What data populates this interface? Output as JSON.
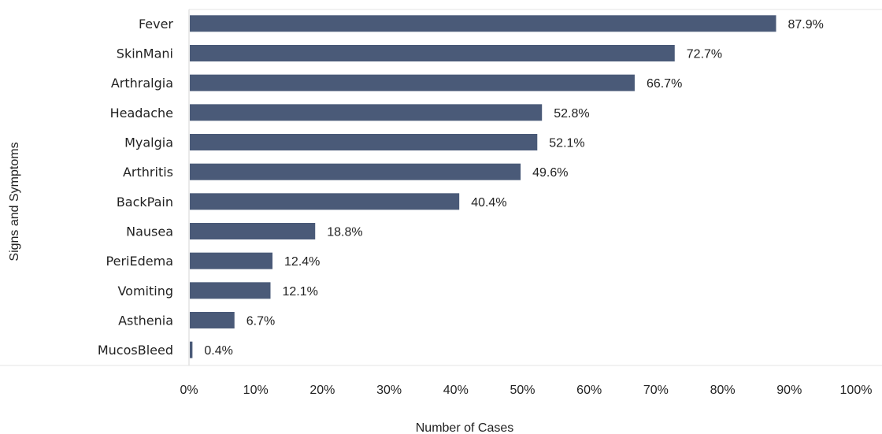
{
  "chart_data": {
    "type": "bar",
    "orientation": "horizontal",
    "title": "",
    "xlabel": "Number of Cases",
    "ylabel": "Signs and Symptoms",
    "xlim": [
      0,
      100
    ],
    "x_ticks": [
      "0%",
      "10%",
      "20%",
      "30%",
      "40%",
      "50%",
      "60%",
      "70%",
      "80%",
      "90%",
      "100%"
    ],
    "categories": [
      "Fever",
      "SkinMani",
      "Arthralgia",
      "Headache",
      "Myalgia",
      "Arthritis",
      "BackPain",
      "Nausea",
      "PeriEdema",
      "Vomiting",
      "Asthenia",
      "MucosBleed"
    ],
    "values": [
      87.9,
      72.7,
      66.7,
      52.8,
      52.1,
      49.6,
      40.4,
      18.8,
      12.4,
      12.1,
      6.7,
      0.4
    ],
    "value_labels": [
      "87.9%",
      "72.7%",
      "66.7%",
      "52.8%",
      "52.1%",
      "49.6%",
      "40.4%",
      "18.8%",
      "12.4%",
      "12.1%",
      "6.7%",
      "0.4%"
    ],
    "bar_color": "#4a5a78",
    "grid": false,
    "legend": "none"
  }
}
